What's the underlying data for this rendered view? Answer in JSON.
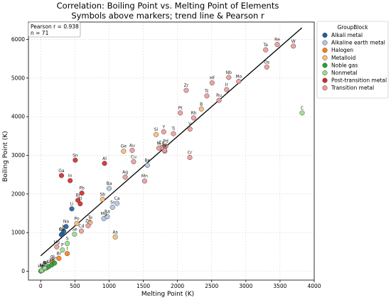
{
  "chart_data": {
    "type": "scatter",
    "title": "Correlation: Boiling Point vs. Melting Point of Elements",
    "subtitle": "Symbols above markers; trend line & Pearson r",
    "xlabel": "Melting Point (K)",
    "ylabel": "Boiling Point (K)",
    "xlim": [
      -180,
      4000
    ],
    "ylim": [
      -230,
      6450
    ],
    "xticks": [
      0,
      500,
      1000,
      1500,
      2000,
      2500,
      3000,
      3500,
      4000
    ],
    "yticks": [
      0,
      1000,
      2000,
      3000,
      4000,
      5000,
      6000
    ],
    "grid": true,
    "legend": {
      "title": "GroupBlock",
      "placement": "outside-right",
      "entries": [
        {
          "name": "Alkali metal",
          "color": "#1f5f9e"
        },
        {
          "name": "Alkaline earth metal",
          "color": "#aec7e8"
        },
        {
          "name": "Halogen",
          "color": "#ff7f0e"
        },
        {
          "name": "Metalloid",
          "color": "#ffbb78"
        },
        {
          "name": "Noble gas",
          "color": "#2ca02c"
        },
        {
          "name": "Nonmetal",
          "color": "#98df8a"
        },
        {
          "name": "Post-transition metal",
          "color": "#d62728"
        },
        {
          "name": "Transition metal",
          "color": "#f09a9a"
        }
      ]
    },
    "stats": {
      "pearson": "Pearson r = 0.938",
      "n": "n = 71"
    },
    "trend": {
      "x": [
        0,
        3820
      ],
      "y": [
        400,
        6300
      ]
    },
    "points": [
      {
        "label": "Li",
        "x": 454,
        "y": 1615,
        "g": 0
      },
      {
        "label": "Na",
        "x": 371,
        "y": 1156,
        "g": 0
      },
      {
        "label": "K",
        "x": 337,
        "y": 1032,
        "g": 0
      },
      {
        "label": "Rb",
        "x": 312,
        "y": 961,
        "g": 0
      },
      {
        "label": "Cs",
        "x": 302,
        "y": 944,
        "g": 0
      },
      {
        "label": "Be",
        "x": 1560,
        "y": 2742,
        "g": 1
      },
      {
        "label": "Mg",
        "x": 923,
        "y": 1363,
        "g": 1
      },
      {
        "label": "Ca",
        "x": 1115,
        "y": 1757,
        "g": 1
      },
      {
        "label": "Sr",
        "x": 1050,
        "y": 1655,
        "g": 1
      },
      {
        "label": "Ba",
        "x": 1000,
        "y": 2143,
        "g": 1
      },
      {
        "label": "Ra",
        "x": 973,
        "y": 1413,
        "g": 1
      },
      {
        "label": "F",
        "x": 53,
        "y": 85,
        "g": 2
      },
      {
        "label": "Cl",
        "x": 172,
        "y": 239,
        "g": 2
      },
      {
        "label": "Br",
        "x": 266,
        "y": 332,
        "g": 2
      },
      {
        "label": "I",
        "x": 387,
        "y": 457,
        "g": 2
      },
      {
        "label": "B",
        "x": 2349,
        "y": 4200,
        "g": 3
      },
      {
        "label": "Si",
        "x": 1687,
        "y": 3538,
        "g": 3
      },
      {
        "label": "Ge",
        "x": 1211,
        "y": 3106,
        "g": 3
      },
      {
        "label": "As",
        "x": 1090,
        "y": 887,
        "g": 3
      },
      {
        "label": "Sb",
        "x": 904,
        "y": 1860,
        "g": 3
      },
      {
        "label": "Te",
        "x": 723,
        "y": 1261,
        "g": 3
      },
      {
        "label": "Po",
        "x": 527,
        "y": 1235,
        "g": 3
      },
      {
        "label": "He",
        "x": 1,
        "y": 4,
        "g": 4
      },
      {
        "label": "Ne",
        "x": 25,
        "y": 27,
        "g": 4
      },
      {
        "label": "Ar",
        "x": 84,
        "y": 87,
        "g": 4
      },
      {
        "label": "Kr",
        "x": 116,
        "y": 120,
        "g": 4
      },
      {
        "label": "Xe",
        "x": 161,
        "y": 165,
        "g": 4
      },
      {
        "label": "Rn",
        "x": 202,
        "y": 211,
        "g": 4
      },
      {
        "label": "H",
        "x": 14,
        "y": 20,
        "g": 5
      },
      {
        "label": "N",
        "x": 63,
        "y": 77,
        "g": 5
      },
      {
        "label": "O",
        "x": 54,
        "y": 90,
        "g": 5
      },
      {
        "label": "C",
        "x": 3823,
        "y": 4098,
        "g": 5
      },
      {
        "label": "P",
        "x": 317,
        "y": 550,
        "g": 5
      },
      {
        "label": "S",
        "x": 388,
        "y": 718,
        "g": 5
      },
      {
        "label": "Se",
        "x": 494,
        "y": 958,
        "g": 5
      },
      {
        "label": "Al",
        "x": 933,
        "y": 2792,
        "g": 6
      },
      {
        "label": "Ga",
        "x": 303,
        "y": 2477,
        "g": 6
      },
      {
        "label": "In",
        "x": 430,
        "y": 2345,
        "g": 6
      },
      {
        "label": "Sn",
        "x": 505,
        "y": 2875,
        "g": 6
      },
      {
        "label": "Tl",
        "x": 577,
        "y": 1746,
        "g": 6
      },
      {
        "label": "Pb",
        "x": 601,
        "y": 2022,
        "g": 6
      },
      {
        "label": "Bi",
        "x": 544,
        "y": 1837,
        "g": 6
      },
      {
        "label": "Sc",
        "x": 1814,
        "y": 3109,
        "g": 7
      },
      {
        "label": "Ti",
        "x": 1941,
        "y": 3560,
        "g": 7
      },
      {
        "label": "V",
        "x": 2183,
        "y": 3680,
        "g": 7
      },
      {
        "label": "Cr",
        "x": 2180,
        "y": 2944,
        "g": 7
      },
      {
        "label": "Mn",
        "x": 1519,
        "y": 2334,
        "g": 7
      },
      {
        "label": "Fe",
        "x": 1811,
        "y": 3134,
        "g": 7
      },
      {
        "label": "Co",
        "x": 1768,
        "y": 3200,
        "g": 7
      },
      {
        "label": "Ni",
        "x": 1728,
        "y": 3186,
        "g": 7
      },
      {
        "label": "Cu",
        "x": 1358,
        "y": 2835,
        "g": 7
      },
      {
        "label": "Zn",
        "x": 693,
        "y": 1180,
        "g": 7
      },
      {
        "label": "Y",
        "x": 1799,
        "y": 3609,
        "g": 7
      },
      {
        "label": "Zr",
        "x": 2128,
        "y": 4682,
        "g": 7
      },
      {
        "label": "Nb",
        "x": 2750,
        "y": 5017,
        "g": 7
      },
      {
        "label": "Mo",
        "x": 2896,
        "y": 4912,
        "g": 7
      },
      {
        "label": "Tc",
        "x": 2430,
        "y": 4538,
        "g": 7
      },
      {
        "label": "Ru",
        "x": 2607,
        "y": 4423,
        "g": 7
      },
      {
        "label": "Rh",
        "x": 2237,
        "y": 3968,
        "g": 7
      },
      {
        "label": "Pd",
        "x": 1828,
        "y": 3236,
        "g": 7
      },
      {
        "label": "Ag",
        "x": 1235,
        "y": 2435,
        "g": 7
      },
      {
        "label": "Cd",
        "x": 594,
        "y": 1040,
        "g": 7
      },
      {
        "label": "Hf",
        "x": 2506,
        "y": 4876,
        "g": 7
      },
      {
        "label": "Ta",
        "x": 3290,
        "y": 5731,
        "g": 7
      },
      {
        "label": "W",
        "x": 3695,
        "y": 5828,
        "g": 7
      },
      {
        "label": "Re",
        "x": 3459,
        "y": 5869,
        "g": 7
      },
      {
        "label": "Os",
        "x": 3306,
        "y": 5285,
        "g": 7
      },
      {
        "label": "Ir",
        "x": 2719,
        "y": 4701,
        "g": 7
      },
      {
        "label": "Pt",
        "x": 2041,
        "y": 4098,
        "g": 7
      },
      {
        "label": "Au",
        "x": 1337,
        "y": 3129,
        "g": 7
      },
      {
        "label": "Hg",
        "x": 234,
        "y": 630,
        "g": 7
      }
    ]
  }
}
